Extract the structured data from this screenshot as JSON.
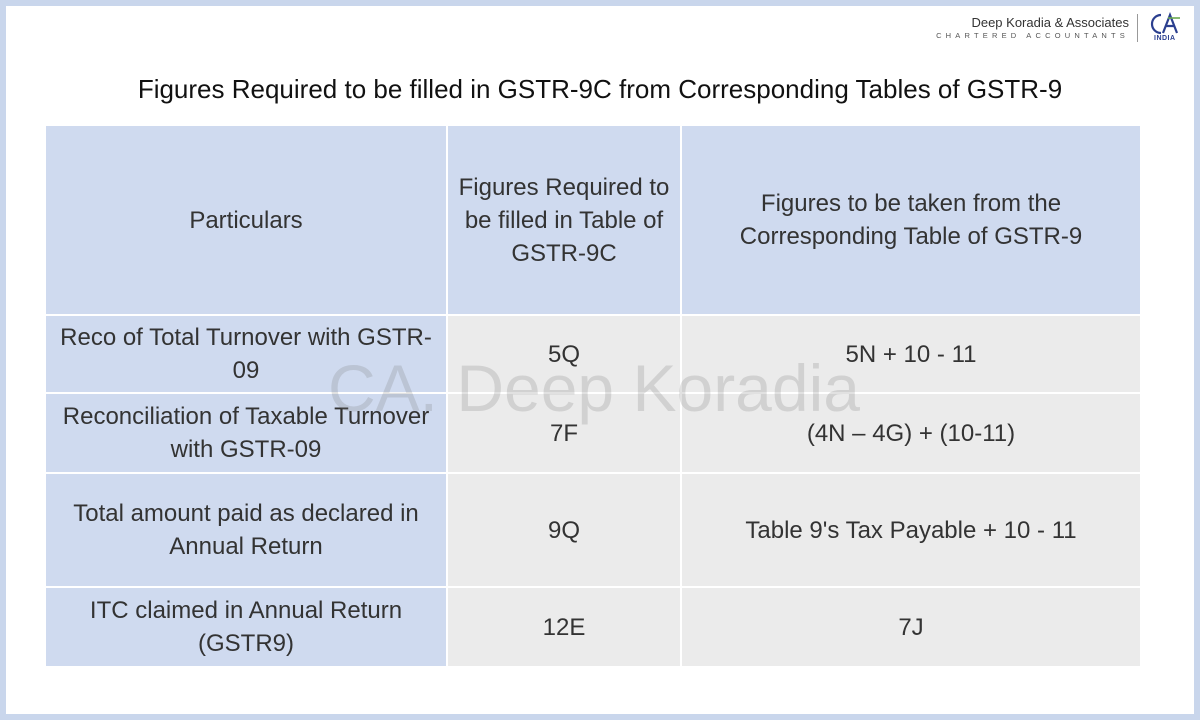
{
  "branding": {
    "firm_name": "Deep Koradia & Associates",
    "firm_subtitle": "CHARTERED ACCOUNTANTS",
    "logo_text": "CA",
    "logo_country": "INDIA",
    "logo_color": "#2b3f8f"
  },
  "title": "Figures Required to be filled in GSTR-9C from Corresponding Tables of GSTR-9",
  "watermark": "CA. Deep Koradia",
  "table": {
    "headers": [
      "Particulars",
      "Figures Required to be filled in Table of GSTR-9C",
      "Figures to be taken from the Corresponding Table of GSTR-9"
    ],
    "rows": [
      {
        "particulars": "Reco of Total Turnover with GSTR-09",
        "gstr9c_table": "5Q",
        "gstr9_table": "5N + 10 - 11"
      },
      {
        "particulars": "Reconciliation of Taxable Turnover with GSTR-09",
        "gstr9c_table": "7F",
        "gstr9_table": "(4N – 4G) + (10-11)"
      },
      {
        "particulars": "Total amount paid as declared in Annual Return",
        "gstr9c_table": "9Q",
        "gstr9_table": "Table 9's Tax Payable + 10 - 11"
      },
      {
        "particulars": "ITC claimed in Annual Return (GSTR9)",
        "gstr9c_table": "12E",
        "gstr9_table": "7J"
      }
    ]
  },
  "colors": {
    "header_fill": "#cfdaef",
    "body_fill": "#ebebeb",
    "frame": "#c9d6ec"
  }
}
